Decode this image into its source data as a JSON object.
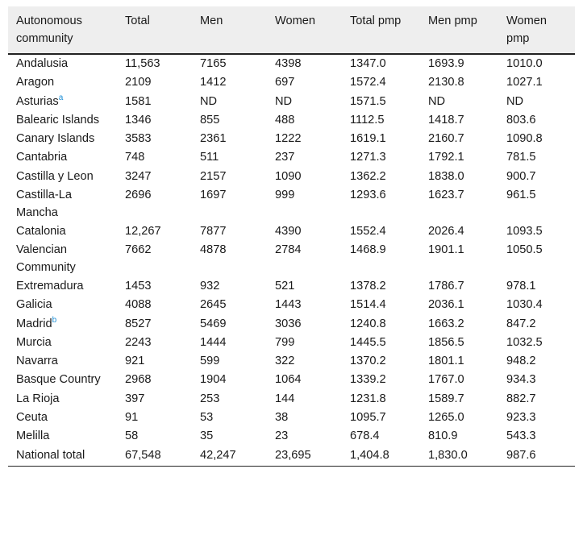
{
  "table": {
    "headers": [
      "Autonomous community",
      "Total",
      "Men",
      "Women",
      "Total pmp",
      "Men pmp",
      "Women pmp"
    ],
    "rows": [
      {
        "community": "Andalusia",
        "note": "",
        "total": "11,563",
        "men": "7165",
        "women": "4398",
        "total_pmp": "1347.0",
        "men_pmp": "1693.9",
        "women_pmp": "1010.0"
      },
      {
        "community": "Aragon",
        "note": "",
        "total": "2109",
        "men": "1412",
        "women": "697",
        "total_pmp": "1572.4",
        "men_pmp": "2130.8",
        "women_pmp": "1027.1"
      },
      {
        "community": "Asturias",
        "note": "a",
        "total": "1581",
        "men": "ND",
        "women": "ND",
        "total_pmp": "1571.5",
        "men_pmp": "ND",
        "women_pmp": "ND"
      },
      {
        "community": "Balearic Islands",
        "note": "",
        "total": "1346",
        "men": "855",
        "women": "488",
        "total_pmp": "1112.5",
        "men_pmp": "1418.7",
        "women_pmp": "803.6"
      },
      {
        "community": "Canary Islands",
        "note": "",
        "total": "3583",
        "men": "2361",
        "women": "1222",
        "total_pmp": "1619.1",
        "men_pmp": "2160.7",
        "women_pmp": "1090.8"
      },
      {
        "community": "Cantabria",
        "note": "",
        "total": "748",
        "men": "511",
        "women": "237",
        "total_pmp": "1271.3",
        "men_pmp": "1792.1",
        "women_pmp": "781.5"
      },
      {
        "community": "Castilla y Leon",
        "note": "",
        "total": "3247",
        "men": "2157",
        "women": "1090",
        "total_pmp": "1362.2",
        "men_pmp": "1838.0",
        "women_pmp": "900.7"
      },
      {
        "community": "Castilla-La Mancha",
        "note": "",
        "total": "2696",
        "men": "1697",
        "women": "999",
        "total_pmp": "1293.6",
        "men_pmp": "1623.7",
        "women_pmp": "961.5"
      },
      {
        "community": "Catalonia",
        "note": "",
        "total": "12,267",
        "men": "7877",
        "women": "4390",
        "total_pmp": "1552.4",
        "men_pmp": "2026.4",
        "women_pmp": "1093.5"
      },
      {
        "community": "Valencian Community",
        "note": "",
        "total": "7662",
        "men": "4878",
        "women": "2784",
        "total_pmp": "1468.9",
        "men_pmp": "1901.1",
        "women_pmp": "1050.5"
      },
      {
        "community": "Extremadura",
        "note": "",
        "total": "1453",
        "men": "932",
        "women": "521",
        "total_pmp": "1378.2",
        "men_pmp": "1786.7",
        "women_pmp": "978.1"
      },
      {
        "community": "Galicia",
        "note": "",
        "total": "4088",
        "men": "2645",
        "women": "1443",
        "total_pmp": "1514.4",
        "men_pmp": "2036.1",
        "women_pmp": "1030.4"
      },
      {
        "community": "Madrid",
        "note": "b",
        "total": "8527",
        "men": "5469",
        "women": "3036",
        "total_pmp": "1240.8",
        "men_pmp": "1663.2",
        "women_pmp": "847.2"
      },
      {
        "community": "Murcia",
        "note": "",
        "total": "2243",
        "men": "1444",
        "women": "799",
        "total_pmp": "1445.5",
        "men_pmp": "1856.5",
        "women_pmp": "1032.5"
      },
      {
        "community": "Navarra",
        "note": "",
        "total": "921",
        "men": "599",
        "women": "322",
        "total_pmp": "1370.2",
        "men_pmp": "1801.1",
        "women_pmp": "948.2"
      },
      {
        "community": "Basque Country",
        "note": "",
        "total": "2968",
        "men": "1904",
        "women": "1064",
        "total_pmp": "1339.2",
        "men_pmp": "1767.0",
        "women_pmp": "934.3"
      },
      {
        "community": "La Rioja",
        "note": "",
        "total": "397",
        "men": "253",
        "women": "144",
        "total_pmp": "1231.8",
        "men_pmp": "1589.7",
        "women_pmp": "882.7"
      },
      {
        "community": "Ceuta",
        "note": "",
        "total": "91",
        "men": "53",
        "women": "38",
        "total_pmp": "1095.7",
        "men_pmp": "1265.0",
        "women_pmp": "923.3"
      },
      {
        "community": "Melilla",
        "note": "",
        "total": "58",
        "men": "35",
        "women": "23",
        "total_pmp": "678.4",
        "men_pmp": "810.9",
        "women_pmp": "543.3"
      },
      {
        "community": "National total",
        "note": "",
        "total": "67,548",
        "men": "42,247",
        "women": "23,695",
        "total_pmp": "1,404.8",
        "men_pmp": "1,830.0",
        "women_pmp": "987.6"
      }
    ]
  },
  "colors": {
    "header_bg": "#eeeeee",
    "footnote_link": "#1e8fd6",
    "rule": "#222222"
  }
}
